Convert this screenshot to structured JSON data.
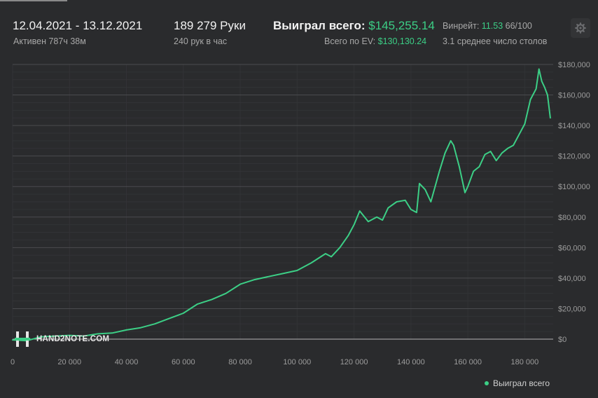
{
  "header": {
    "date_range": "12.04.2021 - 13.12.2021",
    "active_time": "Активен 787ч 38м",
    "hands": "189 279 Руки",
    "hands_per_hour": "240 рук в час",
    "won_label": "Выиграл всего:",
    "won_value": "$145,255.14",
    "ev_label": "Всего по EV:",
    "ev_value": "$130,130.24",
    "winrate_label": "Винрейт:",
    "winrate_value": "11.53",
    "winrate_unit": "66/100",
    "avg_tables": "3.1 среднее число столов",
    "settings_icon": "gear-icon"
  },
  "logo": {
    "text": "HAND2NOTE.COM",
    "icon": "h2n-logo-icon"
  },
  "legend": {
    "label": "Выиграл всего"
  },
  "colors": {
    "line": "#3ccf86",
    "background": "#2a2b2d",
    "grid": "#3c3d40",
    "zero_line": "#b5b5b5"
  },
  "chart_data": {
    "type": "line",
    "title": "",
    "xlabel": "",
    "ylabel": "",
    "xlim": [
      0,
      190000
    ],
    "ylim": [
      0,
      180000
    ],
    "grid": true,
    "legend_position": "bottom-right",
    "x_ticks": [
      0,
      20000,
      40000,
      60000,
      80000,
      100000,
      120000,
      140000,
      160000,
      180000
    ],
    "x_tick_labels": [
      "0",
      "20 000",
      "40 000",
      "60 000",
      "80 000",
      "100 000",
      "120 000",
      "140 000",
      "160 000",
      "180 000"
    ],
    "y_ticks": [
      0,
      20000,
      40000,
      60000,
      80000,
      100000,
      120000,
      140000,
      160000,
      180000
    ],
    "y_tick_labels": [
      "$0",
      "$20,000",
      "$40,000",
      "$60,000",
      "$80,000",
      "$100,000",
      "$120,000",
      "$140,000",
      "$160,000",
      "$180,000"
    ],
    "series": [
      {
        "name": "Выиграл всего",
        "x": [
          0,
          5000,
          10000,
          15000,
          20000,
          25000,
          30000,
          35000,
          40000,
          45000,
          50000,
          55000,
          60000,
          65000,
          70000,
          75000,
          80000,
          85000,
          90000,
          95000,
          100000,
          105000,
          110000,
          112000,
          115000,
          118000,
          120000,
          122000,
          125000,
          128000,
          130000,
          132000,
          135000,
          138000,
          140000,
          142000,
          143000,
          145000,
          147000,
          150000,
          152000,
          154000,
          155000,
          157000,
          159000,
          160000,
          162000,
          164000,
          166000,
          168000,
          170000,
          172000,
          174000,
          176000,
          178000,
          180000,
          182000,
          184000,
          185000,
          186000,
          187000,
          188000,
          189000
        ],
        "y": [
          -500,
          -1000,
          1500,
          2000,
          2500,
          2000,
          3500,
          4000,
          6000,
          7500,
          10000,
          13500,
          17000,
          23000,
          26000,
          30000,
          36000,
          39000,
          41000,
          43000,
          45000,
          50000,
          56000,
          54000,
          60000,
          68000,
          75000,
          84000,
          77000,
          80000,
          78000,
          86000,
          90000,
          91000,
          85000,
          83000,
          102000,
          98000,
          90000,
          110000,
          122000,
          130000,
          127000,
          113000,
          96000,
          100000,
          110000,
          113000,
          121000,
          123000,
          117000,
          122000,
          125000,
          127000,
          134000,
          141000,
          157000,
          164000,
          177000,
          169000,
          165000,
          160000,
          145000
        ]
      }
    ]
  }
}
